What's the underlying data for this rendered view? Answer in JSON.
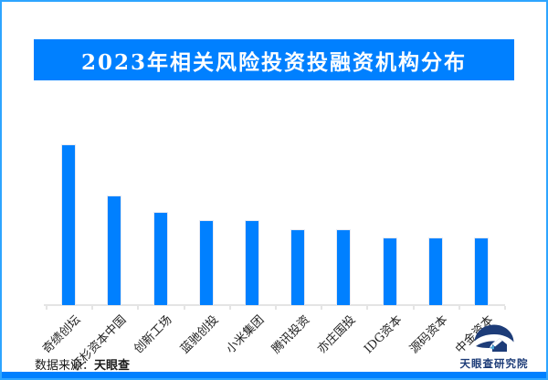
{
  "page": {
    "title_banner": "2023年相关风险投资投融资机构分布",
    "source_prefix": "数据来源：",
    "source_name": "天眼查",
    "logo_text": "天眼查研究院"
  },
  "colors": {
    "accent_blue": "#0080ff",
    "frame_blue": "#2ea5ff",
    "axis_gray": "#e4e4e4",
    "logo_navy": "#1d3c78",
    "title_text": "#ffffff"
  },
  "chart_data": {
    "type": "bar",
    "title": "2023年相关风险投资投融资机构分布",
    "categories": [
      "奇绩创坛",
      "红杉资本中国",
      "创新工场",
      "蓝驰创投",
      "小米集团",
      "腾讯投资",
      "亦庄国投",
      "IDG资本",
      "源码资本",
      "中金资本"
    ],
    "values": [
      19,
      13,
      11,
      10,
      10,
      9,
      9,
      8,
      8,
      8
    ],
    "xlabel": "",
    "ylabel": "",
    "ylim": [
      0,
      20
    ],
    "grid": false,
    "legend": "none",
    "value_labels_shown": false,
    "bar_color": "#0080ff",
    "x_tick_label_rotation_deg": 45
  }
}
